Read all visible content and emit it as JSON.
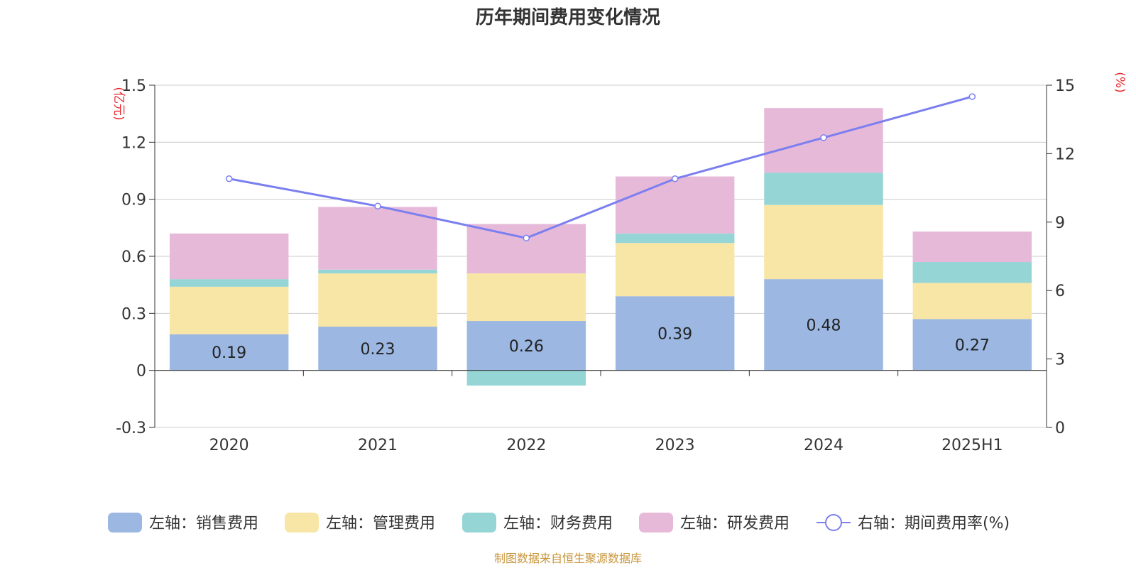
{
  "chart_data": {
    "type": "bar",
    "title": "历年期间费用变化情况",
    "categories": [
      "2020",
      "2021",
      "2022",
      "2023",
      "2024",
      "2025H1"
    ],
    "left_axis": {
      "unit": "(亿元)",
      "ylim": [
        -0.3,
        1.5
      ],
      "ticks": [
        "-0.3",
        "0",
        "0.3",
        "0.6",
        "0.9",
        "1.2",
        "1.5"
      ]
    },
    "right_axis": {
      "unit": "(%)",
      "ylim": [
        0,
        15
      ],
      "ticks": [
        "0",
        "3",
        "6",
        "9",
        "12",
        "15"
      ]
    },
    "stacked": true,
    "series": [
      {
        "name": "左轴：销售费用",
        "axis": "left",
        "color": "#9bb7e2",
        "values": [
          0.19,
          0.23,
          0.26,
          0.39,
          0.48,
          0.27
        ],
        "labels": [
          "0.19",
          "0.23",
          "0.26",
          "0.39",
          "0.48",
          "0.27"
        ]
      },
      {
        "name": "左轴：管理费用",
        "axis": "left",
        "color": "#f8e6a6",
        "values": [
          0.25,
          0.28,
          0.25,
          0.28,
          0.39,
          0.19
        ]
      },
      {
        "name": "左轴：财务费用",
        "axis": "left",
        "color": "#96d5d5",
        "values": [
          0.04,
          0.02,
          -0.08,
          0.05,
          0.17,
          0.11
        ]
      },
      {
        "name": "左轴：研发费用",
        "axis": "left",
        "color": "#e7b9d9",
        "values": [
          0.24,
          0.33,
          0.26,
          0.3,
          0.34,
          0.16
        ]
      },
      {
        "name": "右轴：期间费用率(%)",
        "axis": "right",
        "type": "line",
        "color": "#7b7fef",
        "values": [
          10.9,
          9.7,
          8.3,
          10.9,
          12.7,
          14.5
        ]
      }
    ],
    "grid": true,
    "legend_position": "bottom"
  },
  "source": "制图数据来自恒生聚源数据库"
}
